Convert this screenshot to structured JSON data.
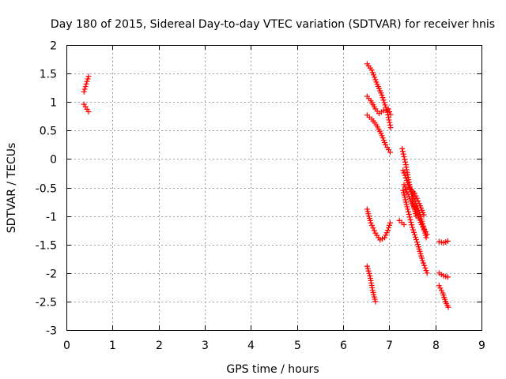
{
  "chart_data": {
    "type": "scatter",
    "title": "Day 180 of 2015, Sidereal Day-to-day VTEC variation (SDTVAR) for receiver hnis",
    "xlabel": "GPS time / hours",
    "ylabel": "SDTVAR / TECUs",
    "xlim": [
      0,
      9
    ],
    "ylim": [
      -3,
      2
    ],
    "xticks": [
      "0",
      "1",
      "2",
      "3",
      "4",
      "5",
      "6",
      "7",
      "8",
      "9"
    ],
    "yticks": [
      "2",
      "1.5",
      "1",
      "0.5",
      "0",
      "-0.5",
      "-1",
      "-1.5",
      "-2",
      "-2.5",
      "-3"
    ],
    "grid": true,
    "marker": "+",
    "series_color": "#ff0000",
    "segments": [
      {
        "x": [
          0.38,
          0.48
        ],
        "y": [
          1.18,
          1.45
        ]
      },
      {
        "x": [
          0.38,
          0.48
        ],
        "y": [
          0.96,
          0.83
        ]
      },
      {
        "x": [
          6.52,
          6.62,
          6.72,
          6.84,
          6.96,
          7.03
        ],
        "y": [
          1.67,
          1.56,
          1.35,
          1.12,
          0.82,
          0.55
        ]
      },
      {
        "x": [
          6.52,
          6.6,
          6.7,
          6.78,
          6.88,
          6.98,
          7.03
        ],
        "y": [
          1.1,
          1.02,
          0.88,
          0.8,
          0.85,
          0.88,
          0.78
        ]
      },
      {
        "x": [
          6.52,
          6.62,
          6.72,
          6.82,
          6.92,
          7.02
        ],
        "y": [
          0.77,
          0.7,
          0.6,
          0.45,
          0.25,
          0.12
        ]
      },
      {
        "x": [
          6.52,
          6.6,
          6.7,
          6.8,
          6.9,
          6.97,
          7.02
        ],
        "y": [
          -0.88,
          -1.12,
          -1.3,
          -1.42,
          -1.38,
          -1.25,
          -1.12
        ]
      },
      {
        "x": [
          6.52,
          6.58,
          6.64,
          6.7
        ],
        "y": [
          -1.88,
          -2.05,
          -2.3,
          -2.5
        ]
      },
      {
        "x": [
          7.28,
          7.36,
          7.44,
          7.5,
          7.58
        ],
        "y": [
          0.18,
          -0.1,
          -0.45,
          -0.7,
          -1.0
        ]
      },
      {
        "x": [
          7.3,
          7.4,
          7.5,
          7.6,
          7.7,
          7.8
        ],
        "y": [
          -0.2,
          -0.42,
          -0.62,
          -0.82,
          -1.05,
          -1.38
        ]
      },
      {
        "x": [
          7.32,
          7.45,
          7.58,
          7.7,
          7.82
        ],
        "y": [
          -0.45,
          -0.7,
          -0.92,
          -1.15,
          -1.32
        ]
      },
      {
        "x": [
          7.3,
          7.4,
          7.5,
          7.62,
          7.72,
          7.82
        ],
        "y": [
          -0.55,
          -0.88,
          -1.2,
          -1.5,
          -1.78,
          -2.0
        ]
      },
      {
        "x": [
          7.45,
          7.55,
          7.65,
          7.75
        ],
        "y": [
          -0.52,
          -0.6,
          -0.78,
          -0.98
        ]
      },
      {
        "x": [
          7.22,
          7.32
        ],
        "y": [
          -1.08,
          -1.15
        ]
      },
      {
        "x": [
          8.08,
          8.18,
          8.27
        ],
        "y": [
          -1.45,
          -1.47,
          -1.44
        ]
      },
      {
        "x": [
          8.08,
          8.18,
          8.27
        ],
        "y": [
          -2.0,
          -2.05,
          -2.07
        ]
      },
      {
        "x": [
          8.08,
          8.16,
          8.22,
          8.28
        ],
        "y": [
          -2.22,
          -2.35,
          -2.5,
          -2.6
        ]
      }
    ]
  }
}
